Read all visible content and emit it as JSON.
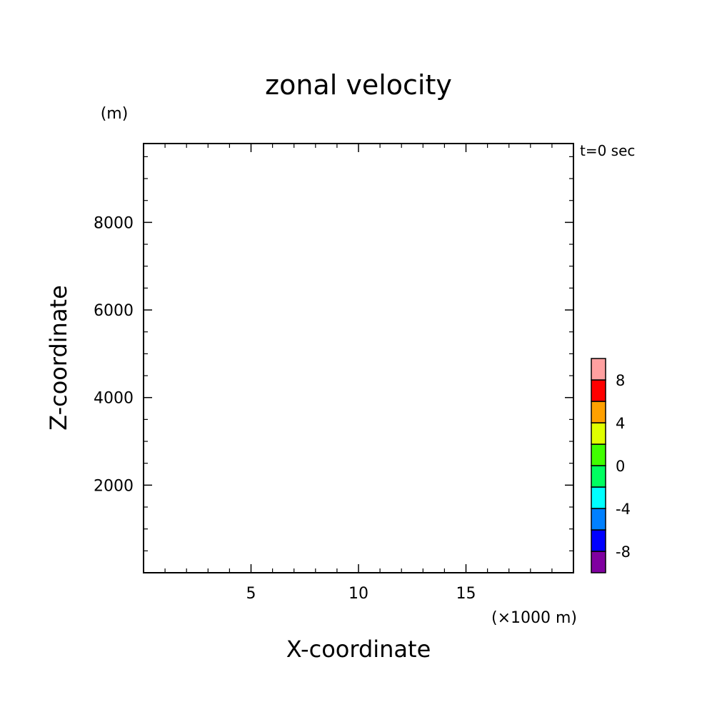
{
  "chart_data": {
    "type": "heatmap",
    "title": "zonal velocity",
    "xlabel": "X-coordinate",
    "ylabel": "Z-coordinate",
    "x_units": "(×1000 m)",
    "y_units": "(m)",
    "time_label": "t=0 sec",
    "xlim": [
      0,
      20
    ],
    "ylim": [
      0,
      9800
    ],
    "x_major_ticks": [
      5,
      10,
      15
    ],
    "x_minor_step": 1,
    "y_major_ticks": [
      2000,
      4000,
      6000,
      8000
    ],
    "y_minor_step": 500,
    "x_tick_labels": [
      "5",
      "10",
      "15"
    ],
    "y_tick_labels": [
      "2000",
      "4000",
      "6000",
      "8000"
    ],
    "grid": false,
    "values": [],
    "colorbar": {
      "levels": [
        -10,
        -8,
        -6,
        -4,
        -2,
        0,
        2,
        4,
        6,
        8,
        10
      ],
      "colors": [
        "#8000a0",
        "#0000ff",
        "#0080ff",
        "#00ffff",
        "#00ff60",
        "#40ff00",
        "#e0ff00",
        "#ffa000",
        "#ff0000",
        "#ffa0a0"
      ],
      "tick_labels": [
        "-8",
        "-4",
        "0",
        "4",
        "8"
      ]
    }
  }
}
